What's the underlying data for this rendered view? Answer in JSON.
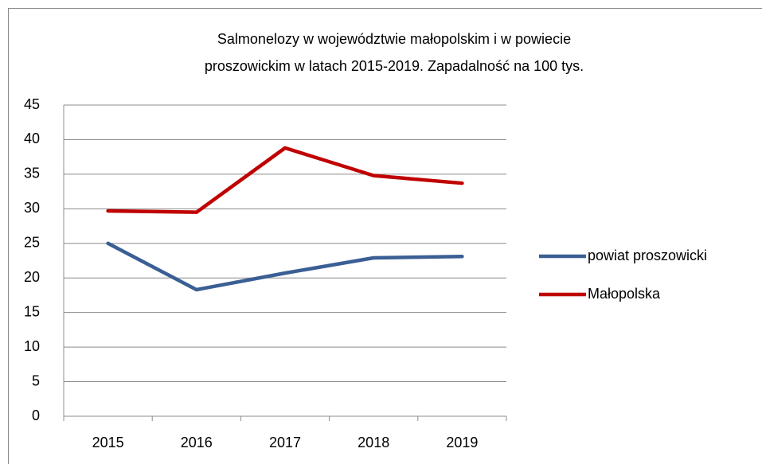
{
  "chart_data": {
    "type": "line",
    "title": [
      "Salmonelozy w województwie małopolskim i w powiecie",
      "proszowickim w latach 2015-2019. Zapadalność na 100 tys."
    ],
    "categories": [
      "2015",
      "2016",
      "2017",
      "2018",
      "2019"
    ],
    "series": [
      {
        "name": "powiat proszowicki",
        "color": "#3a5f94",
        "values": [
          25,
          18.3,
          20.7,
          22.9,
          23.1
        ]
      },
      {
        "name": "Małopolska",
        "color": "#c00000",
        "values": [
          29.7,
          29.5,
          38.8,
          34.8,
          33.7
        ]
      }
    ],
    "ylim": [
      0,
      45
    ],
    "yticks": [
      0,
      5,
      10,
      15,
      20,
      25,
      30,
      35,
      40,
      45
    ],
    "grid": true,
    "legend": "right"
  }
}
